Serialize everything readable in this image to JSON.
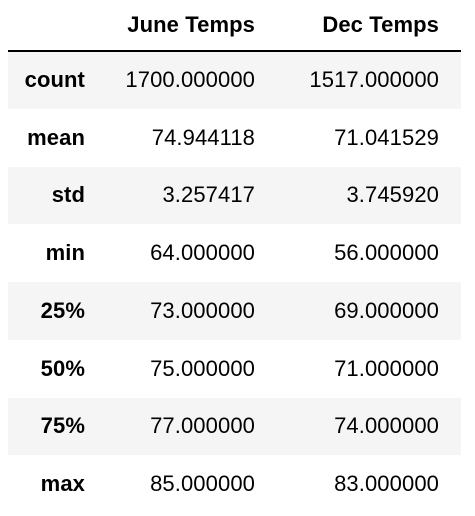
{
  "table": {
    "columns": [
      "June Temps",
      "Dec Temps"
    ],
    "rows": [
      {
        "label": "count",
        "values": [
          "1700.000000",
          "1517.000000"
        ]
      },
      {
        "label": "mean",
        "values": [
          "74.944118",
          "71.041529"
        ]
      },
      {
        "label": "std",
        "values": [
          "3.257417",
          "3.745920"
        ]
      },
      {
        "label": "min",
        "values": [
          "64.000000",
          "56.000000"
        ]
      },
      {
        "label": "25%",
        "values": [
          "73.000000",
          "69.000000"
        ]
      },
      {
        "label": "50%",
        "values": [
          "75.000000",
          "71.000000"
        ]
      },
      {
        "label": "75%",
        "values": [
          "77.000000",
          "74.000000"
        ]
      },
      {
        "label": "max",
        "values": [
          "85.000000",
          "83.000000"
        ]
      }
    ]
  },
  "chart_data": {
    "type": "table",
    "columns": [
      "June Temps",
      "Dec Temps"
    ],
    "index": [
      "count",
      "mean",
      "std",
      "min",
      "25%",
      "50%",
      "75%",
      "max"
    ],
    "series": [
      {
        "name": "June Temps",
        "values": [
          1700.0,
          74.944118,
          3.257417,
          64.0,
          73.0,
          75.0,
          77.0,
          85.0
        ]
      },
      {
        "name": "Dec Temps",
        "values": [
          1517.0,
          71.041529,
          3.74592,
          56.0,
          69.0,
          71.0,
          74.0,
          83.0
        ]
      }
    ]
  },
  "style": {
    "stripe_color": "#f5f5f5",
    "header_rule_color": "#000000",
    "text_color": "#000000"
  }
}
